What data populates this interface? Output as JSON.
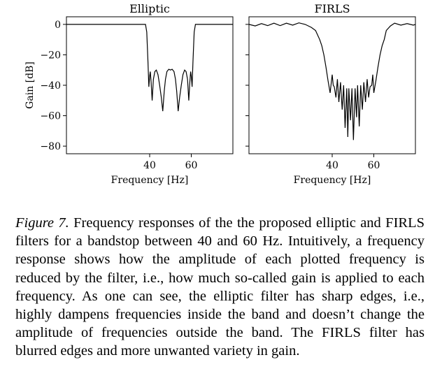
{
  "chart_data": [
    {
      "type": "line",
      "title": "Elliptic",
      "xlabel": "Frequency [Hz]",
      "ylabel": "Gain [dB]",
      "xlim": [
        0,
        80
      ],
      "ylim": [
        -85,
        5
      ],
      "xticks": [
        "40",
        "60"
      ],
      "yticks": [
        "0",
        "−20",
        "−40",
        "−60",
        "−80"
      ],
      "grid": false,
      "series": [
        {
          "color": "#000000",
          "x": [
            0,
            20,
            38.0,
            38.6,
            39.2,
            39.6,
            40.0,
            40.3,
            40.7,
            41.2,
            41.8,
            42.5,
            43.2,
            44.0,
            44.8,
            45.6,
            46.3,
            47.0,
            47.6,
            48.3,
            49.2,
            50.0,
            50.8,
            51.7,
            52.4,
            53.0,
            53.7,
            54.4,
            55.2,
            56.0,
            56.8,
            57.5,
            58.2,
            58.8,
            59.3,
            59.7,
            60.0,
            60.4,
            60.8,
            61.4,
            62.0,
            70,
            80
          ],
          "y": [
            0,
            0,
            0,
            -5,
            -25,
            -41,
            -34,
            -31,
            -38,
            -50,
            -36,
            -31,
            -30,
            -33,
            -40,
            -48,
            -57,
            -44,
            -36,
            -31,
            -29.5,
            -30,
            -29.5,
            -31,
            -36,
            -44,
            -57,
            -48,
            -40,
            -33,
            -30,
            -31,
            -36,
            -50,
            -38,
            -31,
            -34,
            -41,
            -25,
            -5,
            0,
            0,
            0
          ]
        }
      ]
    },
    {
      "type": "line",
      "title": "FIRLS",
      "xlabel": "Frequency [Hz]",
      "ylabel": "",
      "xlim": [
        0,
        80
      ],
      "ylim": [
        -85,
        5
      ],
      "xticks": [
        "40",
        "60"
      ],
      "yticks": [],
      "grid": false,
      "series": [
        {
          "color": "#000000",
          "x": [
            0,
            3,
            6,
            9,
            12,
            15,
            18,
            21,
            24,
            27,
            30,
            32,
            34,
            35,
            36,
            37,
            38,
            39,
            40,
            40.5,
            41,
            41.8,
            42.5,
            43.2,
            44,
            44.8,
            45.5,
            46.2,
            47,
            47.5,
            48,
            48.8,
            49.5,
            50.2,
            51,
            51.7,
            52.2,
            53,
            53.7,
            54.5,
            55.2,
            56,
            56.8,
            57.5,
            58.2,
            59,
            59.5,
            60,
            61,
            62,
            63,
            64,
            65,
            66,
            68,
            70,
            73,
            76,
            79,
            80
          ],
          "y": [
            0,
            -1,
            0.5,
            -0.8,
            0.8,
            -0.8,
            0.8,
            -0.5,
            1,
            0,
            -2,
            -4,
            -10,
            -14,
            -20,
            -28,
            -37,
            -45,
            -33,
            -40,
            -41,
            -48,
            -36,
            -51,
            -38,
            -56,
            -40,
            -68,
            -42,
            -74,
            -42,
            -63,
            -42,
            -76,
            -42,
            -61,
            -40,
            -67,
            -40,
            -56,
            -38,
            -51,
            -36,
            -48,
            -41,
            -40,
            -33,
            -45,
            -37,
            -28,
            -20,
            -14,
            -10,
            -4,
            -1,
            0.8,
            -0.5,
            0.5,
            -0.5,
            0
          ]
        }
      ]
    }
  ],
  "caption": {
    "lead": "Figure 7.",
    "text": " Frequency responses of the the proposed elliptic and FIRLS filters for a bandstop between 40 and 60 Hz. Intuitively, a frequency response shows how the amplitude of each plotted frequency is reduced by the filter, i.e., how much so-called gain is applied to each frequency. As one can see, the elliptic filter has sharp edges, i.e., highly dampens frequencies inside the band and doesn’t change the amplitude of frequencies outside the band. The FIRLS filter has blurred edges and more unwanted variety in gain."
  }
}
